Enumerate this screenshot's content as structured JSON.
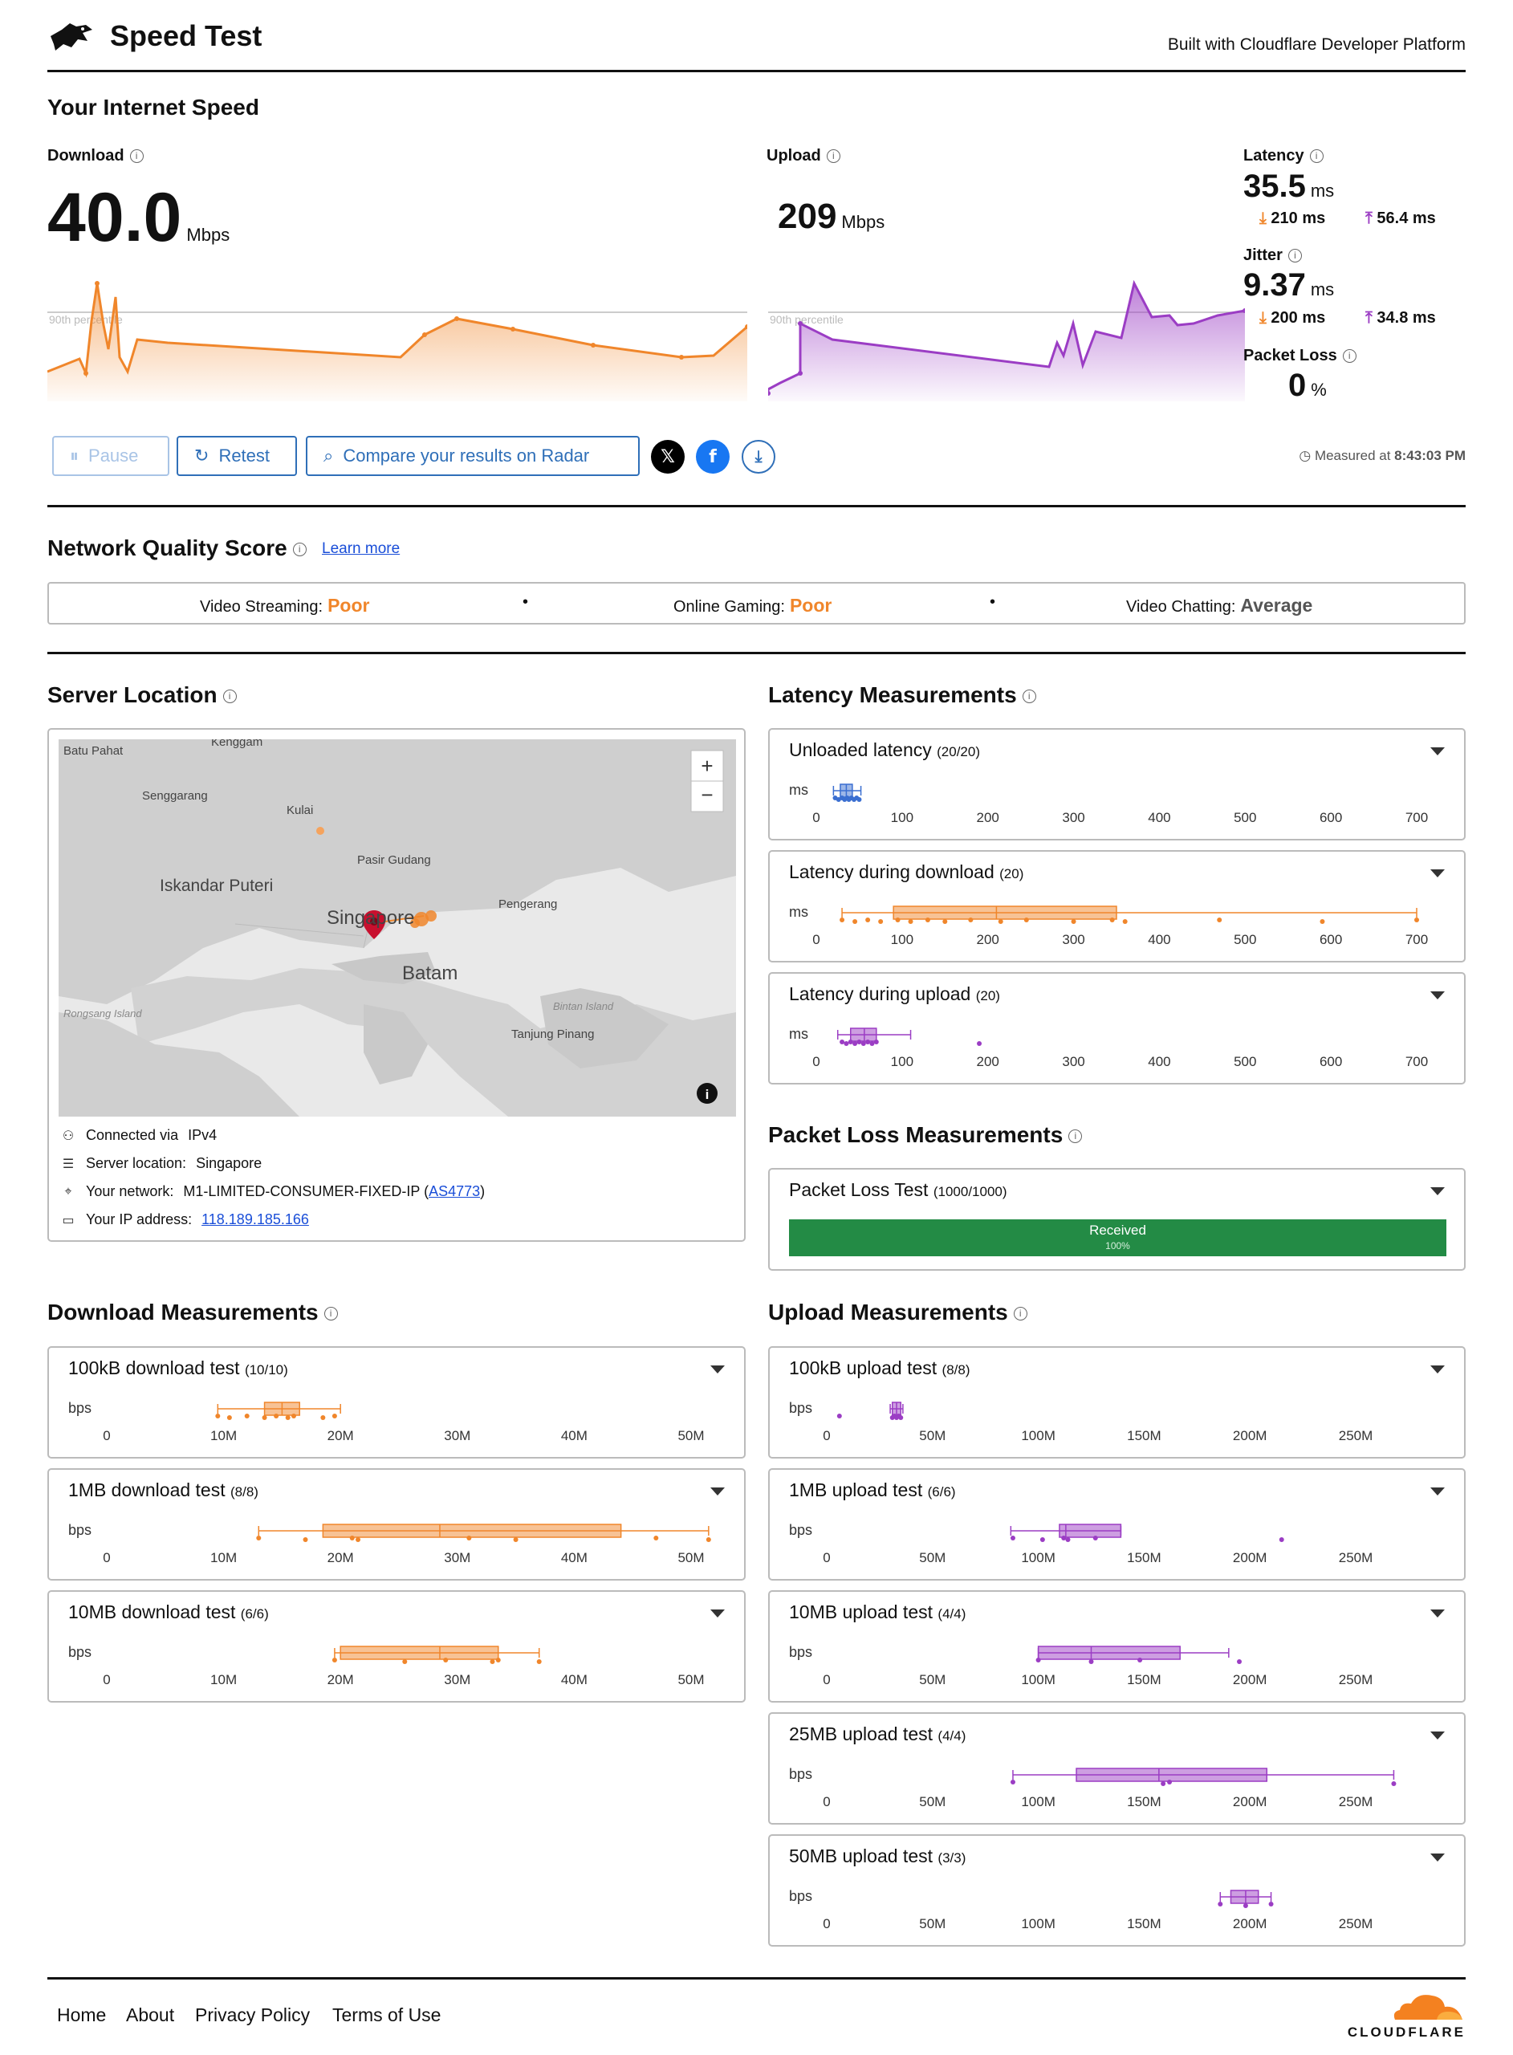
{
  "header": {
    "title": "Speed Test",
    "built_with": "Built with Cloudflare Developer Platform"
  },
  "speed": {
    "section_title": "Your Internet Speed",
    "download": {
      "label": "Download",
      "value": "40.0",
      "unit": "Mbps",
      "percentile_label": "90th percentile"
    },
    "upload": {
      "label": "Upload",
      "value": "209",
      "unit": "Mbps",
      "percentile_label": "90th percentile"
    },
    "latency": {
      "label": "Latency",
      "value": "35.5",
      "unit": "ms",
      "down": "210 ms",
      "up": "56.4 ms"
    },
    "jitter": {
      "label": "Jitter",
      "value": "9.37",
      "unit": "ms",
      "down": "200 ms",
      "up": "34.8 ms"
    },
    "packet_loss": {
      "label": "Packet Loss",
      "value": "0",
      "unit": "%"
    }
  },
  "actions": {
    "pause": "Pause",
    "retest": "Retest",
    "compare": "Compare your results on Radar",
    "measured_prefix": "Measured at",
    "measured_time": "8:43:03 PM"
  },
  "network_quality": {
    "title": "Network Quality Score",
    "learn_more": "Learn more",
    "items": [
      {
        "label": "Video Streaming:",
        "value": "Poor"
      },
      {
        "label": "Online Gaming:",
        "value": "Poor"
      },
      {
        "label": "Video Chatting:",
        "value": "Average"
      }
    ]
  },
  "server": {
    "title": "Server Location",
    "map_labels": {
      "batu_pahat": "Batu Pahat",
      "kenggam": "Kenggam",
      "senggarang": "Senggarang",
      "kulai": "Kulai",
      "pasir_gudang": "Pasir Gudang",
      "iskandar": "Iskandar Puteri",
      "singapore": "Singapore",
      "pengerang": "Pengerang",
      "batam": "Batam",
      "rongsang": "Rongsang Island",
      "bintan": "Bintan Island",
      "tanjung": "Tanjung Pinang"
    },
    "connected_label": "Connected via",
    "connected_value": "IPv4",
    "location_label": "Server location:",
    "location_value": "Singapore",
    "network_label": "Your network:",
    "network_value": "M1-LIMITED-CONSUMER-FIXED-IP",
    "asn": "AS4773",
    "ip_label": "Your IP address:",
    "ip_value": "118.189.185.166"
  },
  "latency_measurements": {
    "title": "Latency Measurements",
    "unit": "ms",
    "ticks": [
      "0",
      "100",
      "200",
      "300",
      "400",
      "500",
      "600",
      "700"
    ],
    "tests": [
      {
        "title": "Unloaded latency",
        "count": "(20/20)",
        "color": "#3b6fd1",
        "min": 20,
        "q1": 28,
        "median": 35,
        "q3": 42,
        "max": 52,
        "points": [
          22,
          26,
          30,
          33,
          36,
          38,
          41,
          44,
          47,
          50
        ]
      },
      {
        "title": "Latency during download",
        "count": "(20)",
        "color": "#f0862b",
        "min": 30,
        "q1": 90,
        "median": 210,
        "q3": 350,
        "max": 700,
        "points": [
          30,
          45,
          60,
          75,
          95,
          110,
          130,
          150,
          180,
          215,
          245,
          300,
          345,
          360,
          470,
          590,
          700
        ]
      },
      {
        "title": "Latency during upload",
        "count": "(20)",
        "color": "#9b3dc4",
        "min": 25,
        "q1": 40,
        "median": 56,
        "q3": 70,
        "max": 110,
        "points": [
          30,
          35,
          40,
          45,
          50,
          55,
          60,
          65,
          70,
          190
        ]
      }
    ]
  },
  "packet_loss_measurements": {
    "title": "Packet Loss Measurements",
    "test_title": "Packet Loss Test",
    "count": "(1000/1000)",
    "bar_label": "Received",
    "bar_value": "100%",
    "received_percent": 100
  },
  "download_measurements": {
    "title": "Download Measurements",
    "unit": "bps",
    "ticks": [
      "0",
      "10M",
      "20M",
      "30M",
      "40M",
      "50M"
    ],
    "tests": [
      {
        "title": "100kB download test",
        "count": "(10/10)",
        "min": 9.5,
        "q1": 13.5,
        "median": 15,
        "q3": 16.5,
        "max": 20,
        "points": [
          9.5,
          10.5,
          12,
          13.5,
          14.5,
          15.5,
          16,
          18.5,
          19.5
        ]
      },
      {
        "title": "1MB download test",
        "count": "(8/8)",
        "min": 13,
        "q1": 18.5,
        "median": 28.5,
        "q3": 44,
        "max": 51.5,
        "points": [
          13,
          17,
          21,
          21.5,
          31,
          35,
          47,
          51.5
        ]
      },
      {
        "title": "10MB download test",
        "count": "(6/6)",
        "min": 19.5,
        "q1": 20,
        "median": 28.5,
        "q3": 33.5,
        "max": 37,
        "points": [
          19.5,
          25.5,
          29,
          33,
          33.5,
          37
        ]
      }
    ]
  },
  "upload_measurements": {
    "title": "Upload Measurements",
    "unit": "bps",
    "ticks": [
      "0",
      "50M",
      "100M",
      "150M",
      "200M",
      "250M"
    ],
    "tests": [
      {
        "title": "100kB upload test",
        "count": "(8/8)",
        "min": 30,
        "q1": 31,
        "median": 33,
        "q3": 35,
        "max": 36,
        "points": [
          6,
          31,
          32,
          33,
          34,
          35
        ]
      },
      {
        "title": "1MB upload test",
        "count": "(6/6)",
        "min": 87,
        "q1": 110,
        "median": 113,
        "q3": 139,
        "max": 139,
        "points": [
          88,
          102,
          112,
          114,
          127,
          215
        ]
      },
      {
        "title": "10MB upload test",
        "count": "(4/4)",
        "min": 100,
        "q1": 100,
        "median": 125,
        "q3": 167,
        "max": 190,
        "points": [
          100,
          125,
          148,
          195
        ]
      },
      {
        "title": "25MB upload test",
        "count": "(4/4)",
        "min": 88,
        "q1": 118,
        "median": 157,
        "q3": 208,
        "max": 268,
        "points": [
          88,
          159,
          162,
          268
        ]
      },
      {
        "title": "50MB upload test",
        "count": "(3/3)",
        "min": 186,
        "q1": 191,
        "median": 198,
        "q3": 204,
        "max": 210,
        "points": [
          186,
          198,
          210
        ]
      }
    ]
  },
  "footer": {
    "home": "Home",
    "about": "About",
    "privacy": "Privacy Policy",
    "terms": "Terms of Use",
    "brand": "CLOUDFLARE"
  },
  "colors": {
    "download": "#f0862b",
    "upload": "#9b3dc4",
    "latency": "#3b6fd1",
    "poor": "#f0862b",
    "received": "#238b45",
    "link": "#2f6fb8"
  }
}
